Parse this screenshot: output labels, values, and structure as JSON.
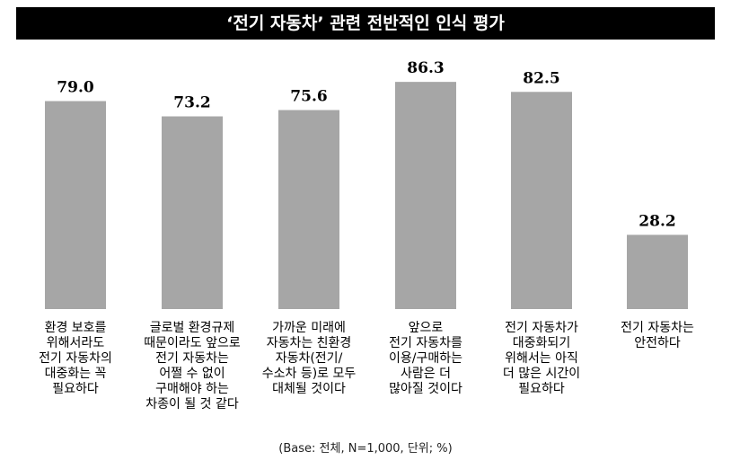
{
  "title": "‘전기 자동차’ 관련 전반적인 인식 평가",
  "footnote": "(Base: 전체, N=1,000, 단위; %)",
  "chart_data": {
    "type": "bar",
    "title": "‘전기 자동차’ 관련 전반적인 인식 평가",
    "categories": [
      "환경 보호를\n위해서라도\n전기 자동차의\n대중화는 꼭\n필요하다",
      "글로벌 환경규제\n때문이라도 앞으로\n전기 자동차는\n어쩔 수 없이\n구매해야 하는\n차종이 될 것 같다",
      "가까운 미래에\n자동차는 친환경\n자동차(전기/\n수소차 등)로 모두\n대체될 것이다",
      "앞으로\n전기 자동차를\n이용/구매하는\n사람은 더\n많아질 것이다",
      "전기 자동차가\n대중화되기\n위해서는 아직\n더 많은 시간이\n필요하다",
      "전기 자동차는\n안전하다"
    ],
    "values": [
      79.0,
      73.2,
      75.6,
      86.3,
      82.5,
      28.2
    ],
    "value_labels": [
      "79.0",
      "73.2",
      "75.6",
      "86.3",
      "82.5",
      "28.2"
    ],
    "bar_color": "#a6a6a6",
    "ylim": [
      0,
      100
    ],
    "grid": false,
    "legend": "none"
  }
}
